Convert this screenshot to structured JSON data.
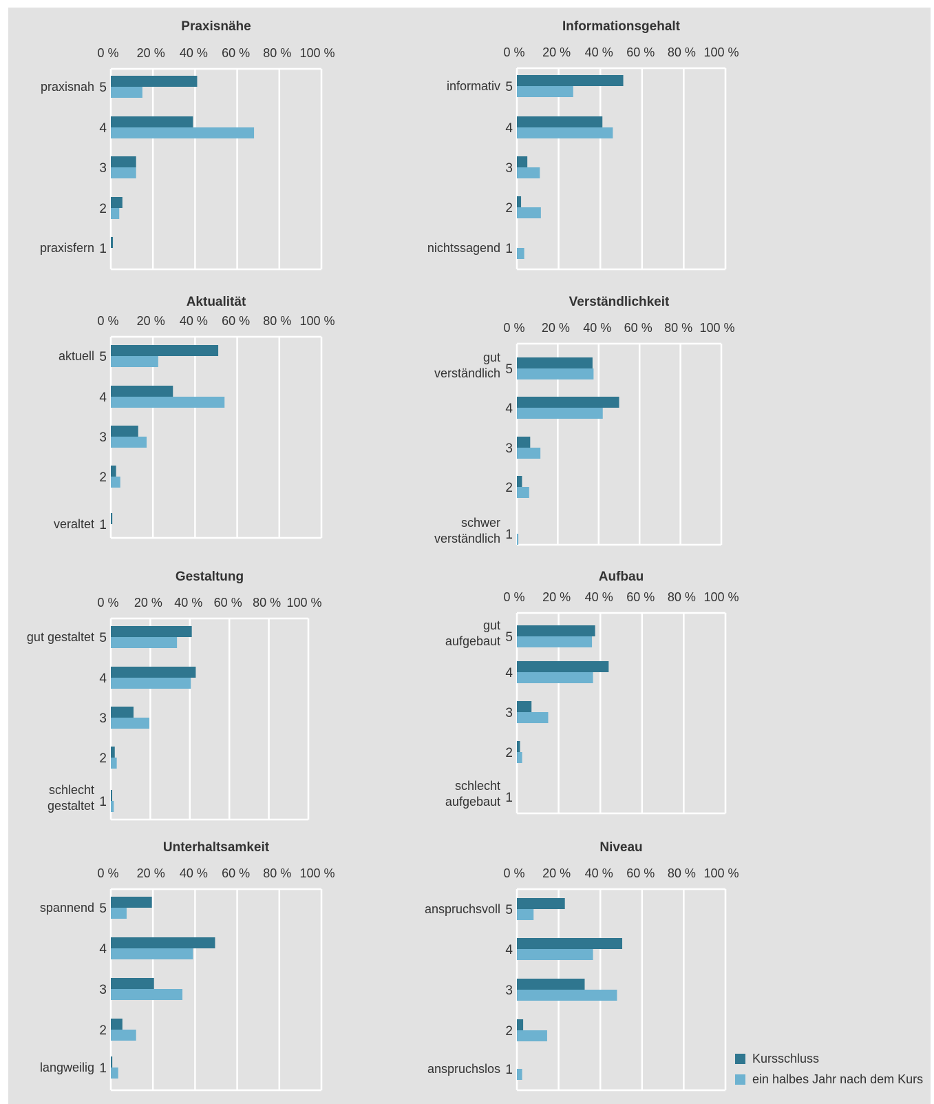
{
  "colors": {
    "background": "#e2e2e2",
    "series_end": "#2f768f",
    "series_later": "#6db2d0",
    "grid": "#ffffff",
    "text": "#333333"
  },
  "legend": {
    "items": [
      {
        "label": "Kursschluss",
        "color": "#2f768f"
      },
      {
        "label": "ein halbes Jahr nach dem Kurs",
        "color": "#6db2d0"
      }
    ]
  },
  "chart_data": [
    {
      "type": "bar",
      "orientation": "horizontal",
      "title": "Praxisnähe",
      "categories": [
        {
          "num": "5",
          "lines": [
            "praxisnah"
          ]
        },
        {
          "num": "4",
          "lines": []
        },
        {
          "num": "3",
          "lines": []
        },
        {
          "num": "2",
          "lines": []
        },
        {
          "num": "1",
          "lines": [
            "praxisfern"
          ]
        }
      ],
      "xticks": [
        "0 %",
        "20 %",
        "40 %",
        "60 %",
        "80 %",
        "100 %"
      ],
      "xlim": [
        0,
        100
      ],
      "series": [
        {
          "name": "Kursschluss",
          "values": [
            41,
            39,
            12,
            5.5,
            1
          ]
        },
        {
          "name": "ein halbes Jahr nach dem Kurs",
          "values": [
            15,
            68,
            12,
            4,
            0
          ]
        }
      ]
    },
    {
      "type": "bar",
      "orientation": "horizontal",
      "title": "Informationsgehalt",
      "categories": [
        {
          "num": "5",
          "lines": [
            "informativ"
          ]
        },
        {
          "num": "4",
          "lines": []
        },
        {
          "num": "3",
          "lines": []
        },
        {
          "num": "2",
          "lines": []
        },
        {
          "num": "1",
          "lines": [
            "nichtssagend"
          ]
        }
      ],
      "xticks": [
        "0 %",
        "20 %",
        "40 %",
        "60 %",
        "80 %",
        "100 %"
      ],
      "xlim": [
        0,
        100
      ],
      "series": [
        {
          "name": "Kursschluss",
          "values": [
            51,
            41,
            5,
            2,
            0
          ]
        },
        {
          "name": "ein halbes Jahr nach dem Kurs",
          "values": [
            27,
            46,
            11,
            11.5,
            3.5
          ]
        }
      ]
    },
    {
      "type": "bar",
      "orientation": "horizontal",
      "title": "Aktualität",
      "categories": [
        {
          "num": "5",
          "lines": [
            "aktuell"
          ]
        },
        {
          "num": "4",
          "lines": []
        },
        {
          "num": "3",
          "lines": []
        },
        {
          "num": "2",
          "lines": []
        },
        {
          "num": "1",
          "lines": [
            "veraltet"
          ]
        }
      ],
      "xticks": [
        "0 %",
        "20 %",
        "40 %",
        "60 %",
        "80 %",
        "100 %"
      ],
      "xlim": [
        0,
        100
      ],
      "series": [
        {
          "name": "Kursschluss",
          "values": [
            51,
            29.5,
            13,
            2.5,
            0.7
          ]
        },
        {
          "name": "ein halbes Jahr nach dem Kurs",
          "values": [
            22.5,
            54,
            17,
            4.5,
            0
          ]
        }
      ]
    },
    {
      "type": "bar",
      "orientation": "horizontal",
      "title": "Verständlichkeit",
      "categories": [
        {
          "num": "5",
          "lines": [
            "gut",
            "verständlich"
          ]
        },
        {
          "num": "4",
          "lines": []
        },
        {
          "num": "3",
          "lines": []
        },
        {
          "num": "2",
          "lines": []
        },
        {
          "num": "1",
          "lines": [
            "schwer",
            "verständlich"
          ]
        }
      ],
      "xticks": [
        "0 %",
        "20 %",
        "40 %",
        "60 %",
        "80 %",
        "100 %"
      ],
      "xlim": [
        0,
        100
      ],
      "series": [
        {
          "name": "Kursschluss",
          "values": [
            37,
            50,
            6.5,
            2.5,
            0
          ]
        },
        {
          "name": "ein halbes Jahr nach dem Kurs",
          "values": [
            37.5,
            42,
            11.5,
            6,
            0.7
          ]
        }
      ]
    },
    {
      "type": "bar",
      "orientation": "horizontal",
      "title": "Gestaltung",
      "categories": [
        {
          "num": "5",
          "lines": [
            "gut gestaltet"
          ]
        },
        {
          "num": "4",
          "lines": []
        },
        {
          "num": "3",
          "lines": []
        },
        {
          "num": "2",
          "lines": []
        },
        {
          "num": "1",
          "lines": [
            "schlecht",
            "gestaltet"
          ]
        }
      ],
      "xticks": [
        "0 %",
        "20 %",
        "40 %",
        "60 %",
        "80 %",
        "100 %"
      ],
      "xlim": [
        0,
        100
      ],
      "series": [
        {
          "name": "Kursschluss",
          "values": [
            41,
            43,
            11.5,
            2,
            0.7
          ]
        },
        {
          "name": "ein halbes Jahr nach dem Kurs",
          "values": [
            33.5,
            40.5,
            19.5,
            3,
            1.5
          ]
        }
      ]
    },
    {
      "type": "bar",
      "orientation": "horizontal",
      "title": "Aufbau",
      "categories": [
        {
          "num": "5",
          "lines": [
            "gut",
            "aufgebaut"
          ]
        },
        {
          "num": "4",
          "lines": []
        },
        {
          "num": "3",
          "lines": []
        },
        {
          "num": "2",
          "lines": []
        },
        {
          "num": "1",
          "lines": [
            "schlecht",
            "aufgebaut"
          ]
        }
      ],
      "xticks": [
        "0 %",
        "20 %",
        "40 %",
        "60 %",
        "80 %",
        "100 %"
      ],
      "xlim": [
        0,
        100
      ],
      "series": [
        {
          "name": "Kursschluss",
          "values": [
            37.5,
            44,
            7,
            1.5,
            0
          ]
        },
        {
          "name": "ein halbes Jahr nach dem Kurs",
          "values": [
            36,
            36.5,
            15,
            2.5,
            0
          ]
        }
      ]
    },
    {
      "type": "bar",
      "orientation": "horizontal",
      "title": "Unterhaltsamkeit",
      "categories": [
        {
          "num": "5",
          "lines": [
            "spannend"
          ]
        },
        {
          "num": "4",
          "lines": []
        },
        {
          "num": "3",
          "lines": []
        },
        {
          "num": "2",
          "lines": []
        },
        {
          "num": "1",
          "lines": [
            "langweilig"
          ]
        }
      ],
      "xticks": [
        "0 %",
        "20 %",
        "40 %",
        "60 %",
        "80 %",
        "100 %"
      ],
      "xlim": [
        0,
        100
      ],
      "series": [
        {
          "name": "Kursschluss",
          "values": [
            19.5,
            49.5,
            20.5,
            5.5,
            0.7
          ]
        },
        {
          "name": "ein halbes Jahr nach dem Kurs",
          "values": [
            7.5,
            39,
            34,
            12,
            3.5
          ]
        }
      ]
    },
    {
      "type": "bar",
      "orientation": "horizontal",
      "title": "Niveau",
      "categories": [
        {
          "num": "5",
          "lines": [
            "anspruchsvoll"
          ]
        },
        {
          "num": "4",
          "lines": []
        },
        {
          "num": "3",
          "lines": []
        },
        {
          "num": "2",
          "lines": []
        },
        {
          "num": "1",
          "lines": [
            "anspruchslos"
          ]
        }
      ],
      "xticks": [
        "0 %",
        "20 %",
        "40 %",
        "60 %",
        "80 %",
        "100 %"
      ],
      "xlim": [
        0,
        100
      ],
      "series": [
        {
          "name": "Kursschluss",
          "values": [
            23,
            50.5,
            32.5,
            3,
            0
          ]
        },
        {
          "name": "ein halbes Jahr nach dem Kurs",
          "values": [
            8,
            36.5,
            48,
            14.5,
            2.5
          ]
        }
      ]
    }
  ]
}
